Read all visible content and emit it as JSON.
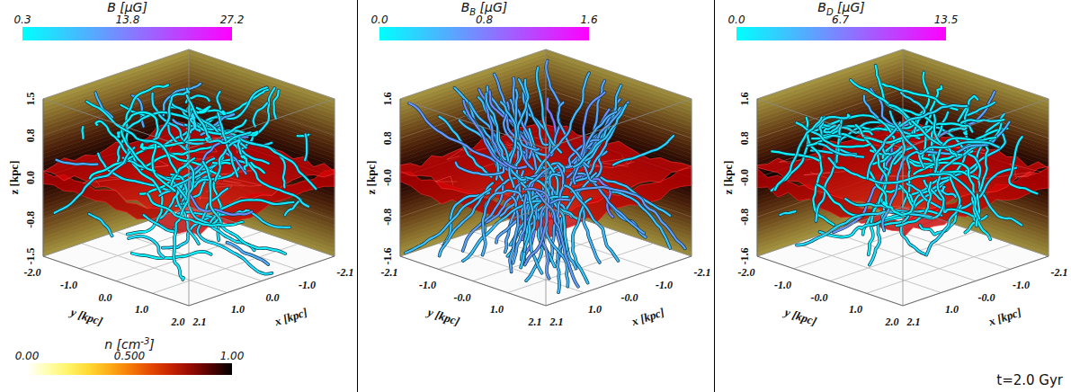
{
  "chart_data": [
    {
      "type": "3d-streamlines",
      "colorbar": {
        "label": "B [μG]",
        "range": [
          0.3,
          27.2
        ],
        "ticks": [
          0.3,
          13.8,
          27.2
        ]
      },
      "density_colorbar": {
        "label": "n [cm",
        "label_sup": "-3",
        "label_end": "]",
        "range": [
          0,
          1
        ],
        "ticks": [
          {
            "value": 0,
            "label": "0.00"
          },
          {
            "value": 0.5,
            "label": "0.500"
          },
          {
            "value": 1,
            "label": "1.00"
          }
        ]
      },
      "xlabel": "x [kpc]",
      "ylabel": "y [kpc]",
      "zlabel": "z [kpc]",
      "xlim": [
        -2.1,
        2.1
      ],
      "xticks": [
        -2.1,
        {
          "value": -1,
          "label": "-1.0"
        },
        {
          "value": 0,
          "label": "0.0"
        },
        {
          "value": 1,
          "label": "1.0"
        },
        2.1
      ],
      "ylim": [
        -2,
        2
      ],
      "yticks": [
        {
          "value": -2,
          "label": "-2.0"
        },
        {
          "value": -1,
          "label": "-1.0"
        },
        {
          "value": 0,
          "label": "0.0"
        },
        {
          "value": 1,
          "label": "1.0"
        },
        {
          "value": 2,
          "label": "2.0"
        }
      ],
      "zlim": [
        -1.5,
        1.5
      ],
      "zticks": [
        -1.5,
        -0.8,
        {
          "value": 0,
          "label": "0.0"
        },
        0.8,
        1.5
      ]
    },
    {
      "type": "3d-streamlines",
      "colorbar": {
        "label": "B",
        "label_sub": "B",
        "label_end": " [μG]",
        "range": [
          0,
          1.6
        ],
        "ticks": [
          {
            "value": 0,
            "label": "0.0"
          },
          0.8,
          1.6
        ]
      },
      "xlabel": "x [kpc]",
      "ylabel": "y [kpc]",
      "zlabel": "z [kpc]",
      "xlim": [
        -2.1,
        2.1
      ],
      "xticks": [
        -2.1,
        {
          "value": -1,
          "label": "-1.0"
        },
        {
          "value": 0,
          "label": "-0.0"
        },
        {
          "value": 1,
          "label": "1.0"
        },
        2.1
      ],
      "ylim": [
        -2.1,
        2.1
      ],
      "yticks": [
        -2.1,
        {
          "value": -1,
          "label": "-1.0"
        },
        {
          "value": 0,
          "label": "-0.0"
        },
        {
          "value": 1,
          "label": "1.0"
        },
        2.1
      ],
      "zlim": [
        -1.6,
        1.6
      ],
      "zticks": [
        -1.6,
        -0.8,
        {
          "value": 0,
          "label": "-0.0"
        },
        0.8,
        1.6
      ]
    },
    {
      "type": "3d-streamlines",
      "colorbar": {
        "label": "B",
        "label_sub": "D",
        "label_end": " [μG]",
        "range": [
          0,
          13.5
        ],
        "ticks": [
          {
            "value": 0,
            "label": "0.0"
          },
          6.7,
          13.5
        ]
      },
      "xlabel": "x [kpc]",
      "ylabel": "y [kpc]",
      "zlabel": "z [kpc]",
      "xlim": [
        -2.1,
        2.1
      ],
      "xticks": [
        -2.1,
        {
          "value": -1,
          "label": "-1.0"
        },
        {
          "value": 0,
          "label": "-0.0"
        },
        {
          "value": 1,
          "label": "1.0"
        },
        2.1
      ],
      "ylim": [
        -2,
        2
      ],
      "yticks": [
        {
          "value": -2,
          "label": "-2.0"
        },
        {
          "value": -1,
          "label": "-1.0"
        },
        {
          "value": 0,
          "label": "-0.0"
        },
        {
          "value": 1,
          "label": "1.0"
        },
        {
          "value": 2,
          "label": "2.0"
        }
      ],
      "zlim": [
        -1.6,
        1.6
      ],
      "zticks": [
        -1.6,
        -0.8,
        {
          "value": 0,
          "label": "-0.0"
        },
        0.8,
        1.6
      ],
      "annotation": "t=2.0 Gyr"
    }
  ]
}
